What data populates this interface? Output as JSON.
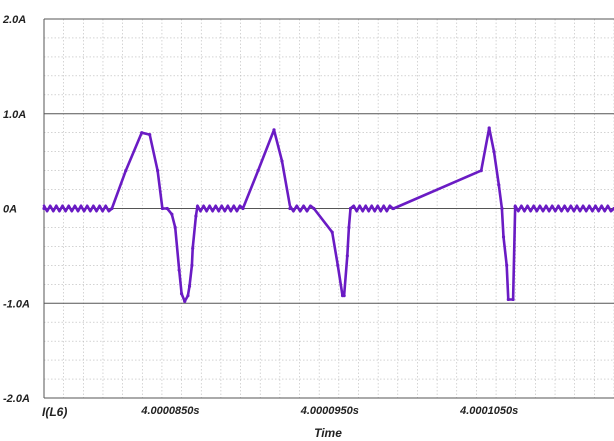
{
  "chart_data": {
    "type": "line",
    "title": "",
    "xlabel": "Time",
    "ylabel": "I(L6)",
    "ylim": [
      -2.0,
      2.0
    ],
    "xlim": [
      4.00007707,
      4.00011283
    ],
    "y_ticks": [
      {
        "value": 2.0,
        "label": "2.0A"
      },
      {
        "value": 1.0,
        "label": "1.0A"
      },
      {
        "value": 0.0,
        "label": "0A"
      },
      {
        "value": -1.0,
        "label": "-1.0A"
      },
      {
        "value": -2.0,
        "label": "-2.0A"
      }
    ],
    "x_ticks": [
      {
        "value": 4.000085,
        "label": "4.0000850s"
      },
      {
        "value": 4.000095,
        "label": "4.0000950s"
      },
      {
        "value": 4.000105,
        "label": "4.0001050s"
      }
    ],
    "grid": true,
    "series": [
      {
        "name": "I(L6)",
        "color": "#6a1bc4",
        "ripple_amplitude": 0.03,
        "x": [
          4.00007707,
          4.00008133,
          4.0000822,
          4.0000832,
          4.0000837,
          4.0000842,
          4.0000845,
          4.0000848,
          4.00008509,
          4.0000853,
          4.00008555,
          4.0000857,
          4.0000859,
          4.0000861,
          4.0000862,
          4.00008635,
          4.0000864,
          4.0000866,
          4.0000867,
          4.00008955,
          4.0000905,
          4.0000915,
          4.000092,
          4.0000925,
          4.000094,
          4.00009515,
          4.0000955,
          4.0000958,
          4.0000959,
          4.0000961,
          4.0000962,
          4.0000963,
          4.0000965,
          4.00009895,
          4.000099,
          4.0001045,
          4.000105,
          4.0001053,
          4.0001056,
          4.0001058,
          4.0001059,
          4.0001061,
          4.0001062,
          4.0001065,
          4.00010663,
          4.00011283
        ],
        "y": [
          0.0,
          0.0,
          0.4,
          0.8,
          0.78,
          0.4,
          0.0,
          0.0,
          -0.06,
          -0.2,
          -0.65,
          -0.9,
          -0.98,
          -0.92,
          -0.82,
          -0.6,
          -0.42,
          -0.08,
          0.02,
          0.0,
          0.4,
          0.83,
          0.5,
          0.0,
          0.0,
          -0.25,
          -0.6,
          -0.92,
          -0.92,
          -0.5,
          -0.2,
          0.0,
          0.02,
          0.0,
          0.0,
          0.4,
          0.85,
          0.6,
          0.25,
          0.0,
          -0.3,
          -0.6,
          -0.96,
          -0.96,
          0.02,
          0.0
        ]
      }
    ]
  }
}
